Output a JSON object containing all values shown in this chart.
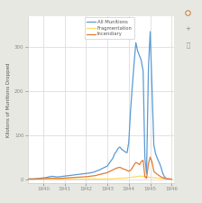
{
  "title": "",
  "ylabel": "Kilotons of Munitions Dropped",
  "xlabel": "",
  "xlim": [
    1939.3,
    1946.1
  ],
  "ylim": [
    -8,
    370
  ],
  "yticks": [
    0,
    100,
    200,
    300
  ],
  "xticks": [
    1940,
    1941,
    1942,
    1943,
    1944,
    1945,
    1946
  ],
  "plot_bg": "#ffffff",
  "outer_bg": "#e8e8e3",
  "grid_color": "#dddddd",
  "legend_labels": [
    "All Munitions",
    "Fragmentation",
    "Incendiary"
  ],
  "line_colors": [
    "#5b9bd5",
    "#ffd966",
    "#e07b39"
  ],
  "tick_color": "#888888",
  "label_color": "#555555",
  "all_munitions_x": [
    1939.25,
    1939.33,
    1939.42,
    1939.5,
    1939.58,
    1939.67,
    1939.75,
    1939.83,
    1939.92,
    1940.0,
    1940.08,
    1940.17,
    1940.25,
    1940.33,
    1940.42,
    1940.5,
    1940.58,
    1940.67,
    1940.75,
    1940.83,
    1940.92,
    1941.0,
    1941.08,
    1941.17,
    1941.25,
    1941.33,
    1941.42,
    1941.5,
    1941.58,
    1941.67,
    1941.75,
    1941.83,
    1941.92,
    1942.0,
    1942.08,
    1942.17,
    1942.25,
    1942.33,
    1942.42,
    1942.5,
    1942.58,
    1942.67,
    1942.75,
    1942.83,
    1942.92,
    1943.0,
    1943.08,
    1943.17,
    1943.25,
    1943.33,
    1943.42,
    1943.5,
    1943.58,
    1943.67,
    1943.75,
    1943.83,
    1943.92,
    1944.0,
    1944.08,
    1944.17,
    1944.25,
    1944.33,
    1944.42,
    1944.5,
    1944.58,
    1944.67,
    1944.75,
    1944.83,
    1944.92,
    1945.0,
    1945.08,
    1945.17,
    1945.25,
    1945.33,
    1945.42,
    1945.5,
    1945.58,
    1945.67,
    1945.75,
    1945.83,
    1945.92,
    1946.0
  ],
  "all_munitions_y": [
    0.3,
    0.4,
    0.5,
    0.6,
    0.8,
    1.0,
    1.5,
    2.0,
    2.5,
    3.0,
    3.5,
    4.0,
    5.0,
    6.0,
    6.5,
    6.0,
    5.5,
    5.0,
    5.5,
    6.0,
    6.5,
    7.0,
    7.5,
    8.0,
    8.5,
    9.0,
    9.5,
    10.0,
    10.5,
    11.0,
    11.5,
    12.0,
    12.5,
    13.0,
    13.5,
    14.0,
    15.0,
    15.5,
    17.0,
    19.0,
    20.0,
    22.0,
    24.0,
    26.0,
    28.0,
    30.0,
    36.0,
    42.0,
    47.0,
    57.0,
    63.0,
    70.0,
    73.0,
    68.0,
    65.0,
    62.0,
    60.0,
    85.0,
    155.0,
    215.0,
    265.0,
    310.0,
    290.0,
    280.0,
    270.0,
    245.0,
    50.0,
    12.0,
    255.0,
    335.0,
    215.0,
    78.0,
    58.0,
    48.0,
    38.0,
    28.0,
    14.0,
    5.0,
    2.0,
    1.0,
    0.5,
    0.1
  ],
  "fragmentation_x": [
    1939.25,
    1939.5,
    1939.75,
    1940.0,
    1940.25,
    1940.5,
    1940.75,
    1941.0,
    1941.25,
    1941.5,
    1941.75,
    1942.0,
    1942.25,
    1942.5,
    1942.75,
    1943.0,
    1943.25,
    1943.5,
    1943.75,
    1944.0,
    1944.25,
    1944.5,
    1944.75,
    1945.0,
    1945.25,
    1945.5,
    1945.75,
    1946.0
  ],
  "fragmentation_y": [
    0.05,
    0.05,
    0.05,
    0.1,
    0.1,
    0.1,
    0.1,
    0.15,
    0.15,
    0.2,
    0.2,
    0.3,
    0.4,
    0.5,
    0.6,
    0.8,
    1.2,
    1.8,
    2.5,
    3.5,
    5.0,
    7.0,
    6.0,
    4.0,
    3.0,
    2.0,
    1.0,
    0.1
  ],
  "incendiary_x": [
    1939.25,
    1939.33,
    1939.42,
    1939.5,
    1939.58,
    1939.67,
    1939.75,
    1939.83,
    1939.92,
    1940.0,
    1940.08,
    1940.17,
    1940.25,
    1940.33,
    1940.42,
    1940.5,
    1940.58,
    1940.67,
    1940.75,
    1940.83,
    1940.92,
    1941.0,
    1941.08,
    1941.17,
    1941.25,
    1941.33,
    1941.42,
    1941.5,
    1941.58,
    1941.67,
    1941.75,
    1941.83,
    1941.92,
    1942.0,
    1942.08,
    1942.17,
    1942.25,
    1942.33,
    1942.42,
    1942.5,
    1942.58,
    1942.67,
    1942.75,
    1942.83,
    1942.92,
    1943.0,
    1943.08,
    1943.17,
    1943.25,
    1943.33,
    1943.42,
    1943.5,
    1943.58,
    1943.67,
    1943.75,
    1943.83,
    1943.92,
    1944.0,
    1944.08,
    1944.17,
    1944.25,
    1944.33,
    1944.42,
    1944.5,
    1944.58,
    1944.67,
    1944.75,
    1944.83,
    1944.92,
    1945.0,
    1945.08,
    1945.17,
    1945.25,
    1945.33,
    1945.42,
    1945.5,
    1945.58,
    1945.67,
    1945.75,
    1945.83,
    1945.92,
    1946.0
  ],
  "incendiary_y": [
    0.2,
    0.2,
    0.3,
    0.3,
    0.4,
    0.5,
    0.6,
    0.8,
    1.0,
    1.2,
    1.4,
    1.6,
    1.8,
    2.0,
    2.2,
    2.0,
    1.8,
    1.6,
    1.8,
    2.0,
    2.2,
    2.5,
    2.8,
    3.0,
    3.3,
    3.6,
    3.8,
    4.0,
    4.3,
    4.5,
    4.8,
    5.0,
    5.3,
    5.5,
    6.0,
    6.5,
    7.0,
    7.5,
    8.0,
    9.0,
    10.0,
    11.0,
    12.0,
    13.0,
    14.0,
    15.0,
    17.0,
    19.0,
    21.0,
    23.0,
    25.0,
    26.0,
    27.0,
    25.0,
    23.0,
    22.0,
    20.0,
    18.0,
    20.0,
    26.0,
    33.0,
    38.0,
    36.0,
    33.0,
    40.0,
    43.0,
    6.0,
    2.0,
    35.0,
    50.0,
    40.0,
    18.0,
    14.0,
    11.0,
    8.0,
    5.5,
    3.5,
    1.8,
    0.9,
    0.4,
    0.2,
    0.05
  ]
}
